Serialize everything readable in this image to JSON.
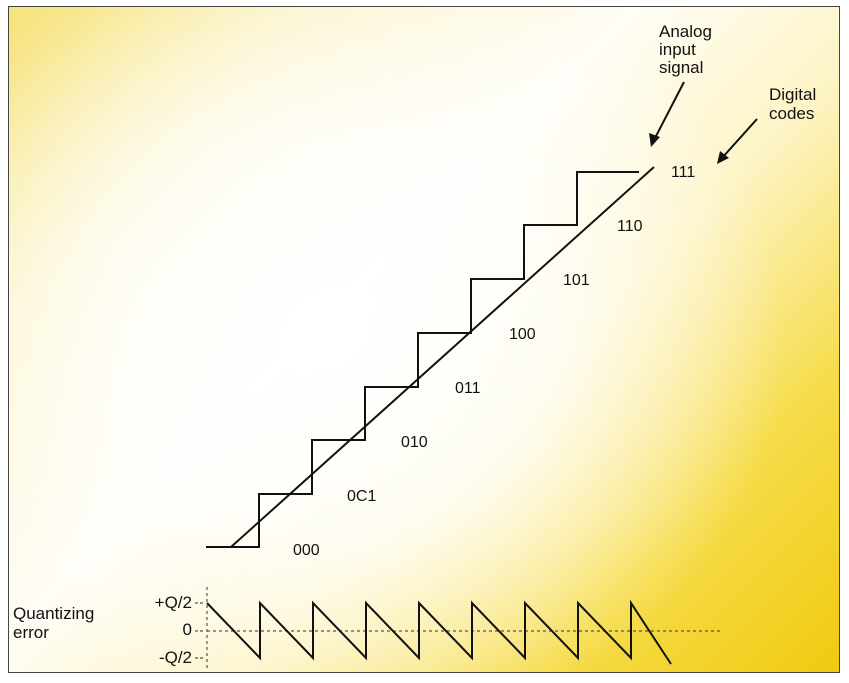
{
  "labels": {
    "analog_line1": "Analog",
    "analog_line2": "input",
    "analog_line3": "signal",
    "digital_line1": "Digital",
    "digital_line2": "codes",
    "error_line1": "Quantizing",
    "error_line2": "error"
  },
  "codes": [
    "000",
    "0C1",
    "010",
    "011",
    "100",
    "101",
    "110",
    "111"
  ],
  "error_axis": {
    "plus": "+Q/2",
    "zero": "0",
    "minus": "-Q/2"
  },
  "colors": {
    "line": "#111111",
    "frame": "#444444",
    "gradient_accent": "#f0c910"
  }
}
